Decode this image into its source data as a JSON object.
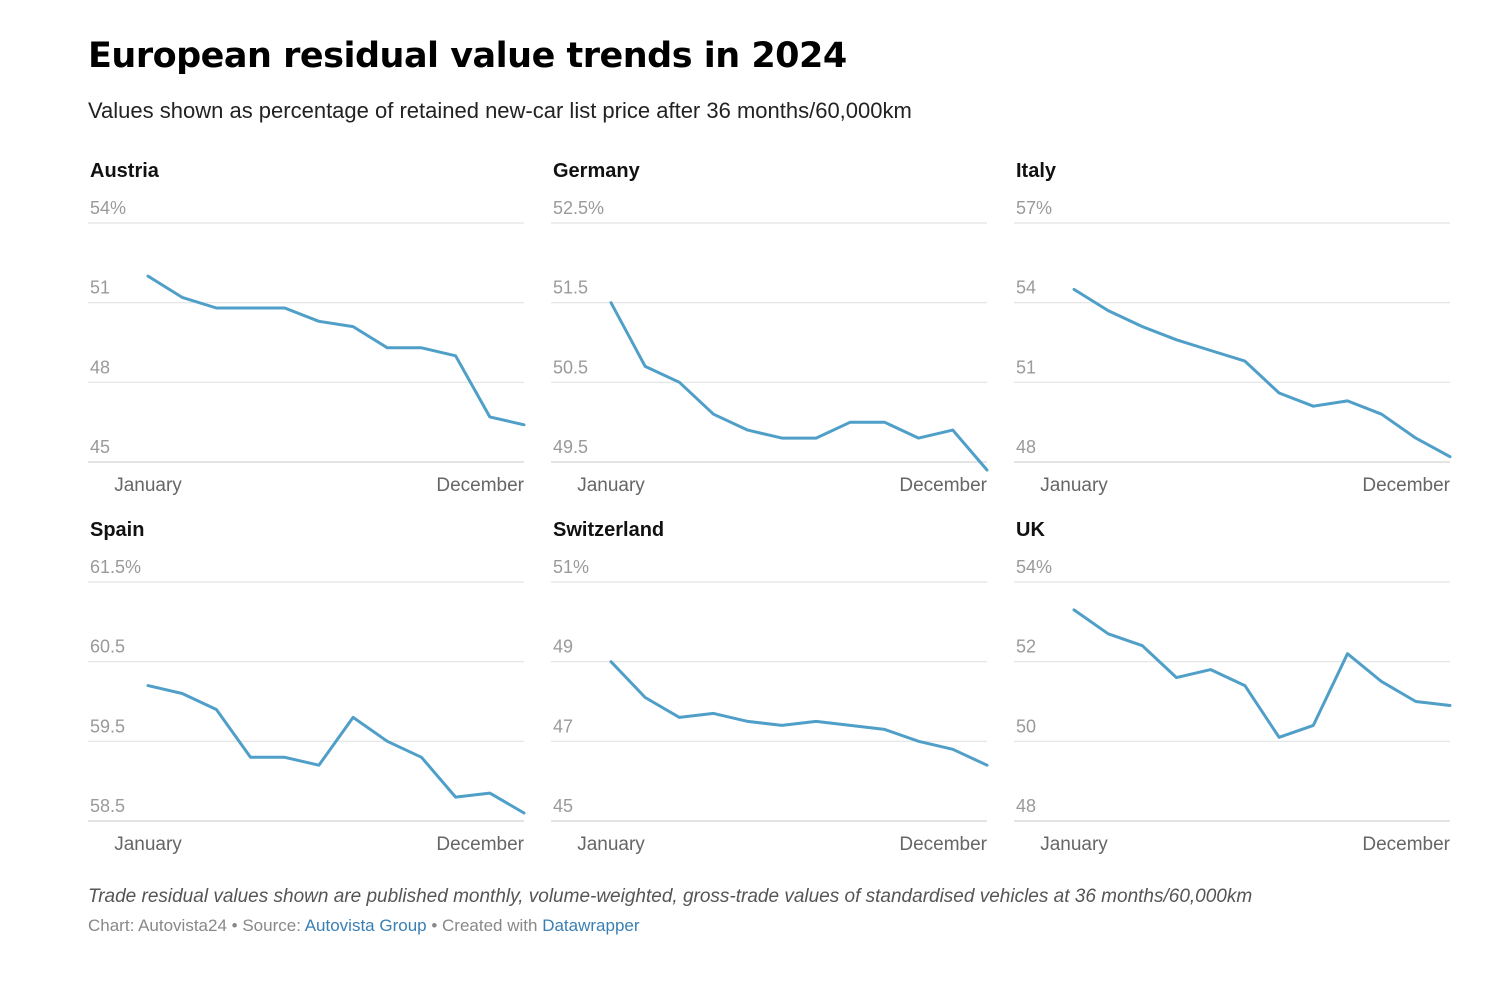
{
  "title": "European residual value trends in 2024",
  "subtitle": "Values shown as percentage of retained new-car list price after 36 months/60,000km",
  "line_color": "#4f9fc8",
  "chart_data": [
    {
      "type": "line",
      "title": "Austria",
      "x_labels": [
        "January",
        "December"
      ],
      "yticks": [
        "54%",
        "51",
        "48",
        "45"
      ],
      "ylim": [
        45,
        54
      ],
      "values": [
        52.0,
        51.2,
        50.8,
        50.8,
        50.8,
        50.3,
        50.1,
        49.3,
        49.3,
        49.0,
        46.7,
        46.4
      ]
    },
    {
      "type": "line",
      "title": "Germany",
      "x_labels": [
        "January",
        "December"
      ],
      "yticks": [
        "52.5%",
        "51.5",
        "50.5",
        "49.5"
      ],
      "ylim": [
        49.5,
        52.5
      ],
      "values": [
        51.5,
        50.7,
        50.5,
        50.1,
        49.9,
        49.8,
        49.8,
        50.0,
        50.0,
        49.8,
        49.9,
        49.4
      ]
    },
    {
      "type": "line",
      "title": "Italy",
      "x_labels": [
        "January",
        "December"
      ],
      "yticks": [
        "57%",
        "54",
        "51",
        "48"
      ],
      "ylim": [
        48,
        57
      ],
      "values": [
        54.5,
        53.7,
        53.1,
        52.6,
        52.2,
        51.8,
        50.6,
        50.1,
        50.3,
        49.8,
        48.9,
        48.2
      ]
    },
    {
      "type": "line",
      "title": "Spain",
      "x_labels": [
        "January",
        "December"
      ],
      "yticks": [
        "61.5%",
        "60.5",
        "59.5",
        "58.5"
      ],
      "ylim": [
        58.5,
        61.5
      ],
      "values": [
        60.2,
        60.1,
        59.9,
        59.3,
        59.3,
        59.2,
        59.8,
        59.5,
        59.3,
        58.8,
        58.85,
        58.6
      ]
    },
    {
      "type": "line",
      "title": "Switzerland",
      "x_labels": [
        "January",
        "December"
      ],
      "yticks": [
        "51%",
        "49",
        "47",
        "45"
      ],
      "ylim": [
        45,
        51
      ],
      "values": [
        49.0,
        48.1,
        47.6,
        47.7,
        47.5,
        47.4,
        47.5,
        47.4,
        47.3,
        47.0,
        46.8,
        46.4
      ]
    },
    {
      "type": "line",
      "title": "UK",
      "x_labels": [
        "January",
        "December"
      ],
      "yticks": [
        "54%",
        "52",
        "50",
        "48"
      ],
      "ylim": [
        48,
        54
      ],
      "values": [
        53.3,
        52.7,
        52.4,
        51.6,
        51.8,
        51.4,
        50.1,
        50.4,
        52.2,
        51.5,
        51.0,
        50.9
      ]
    }
  ],
  "note": "Trade residual values shown are published monthly, volume-weighted, gross-trade values of standardised vehicles at 36 months/60,000km",
  "credits": {
    "chart_label": "Chart: Autovista24",
    "separator": " • ",
    "source_label": "Source: ",
    "source_link": "Autovista Group",
    "created_label": "Created with ",
    "created_link": "Datawrapper"
  }
}
